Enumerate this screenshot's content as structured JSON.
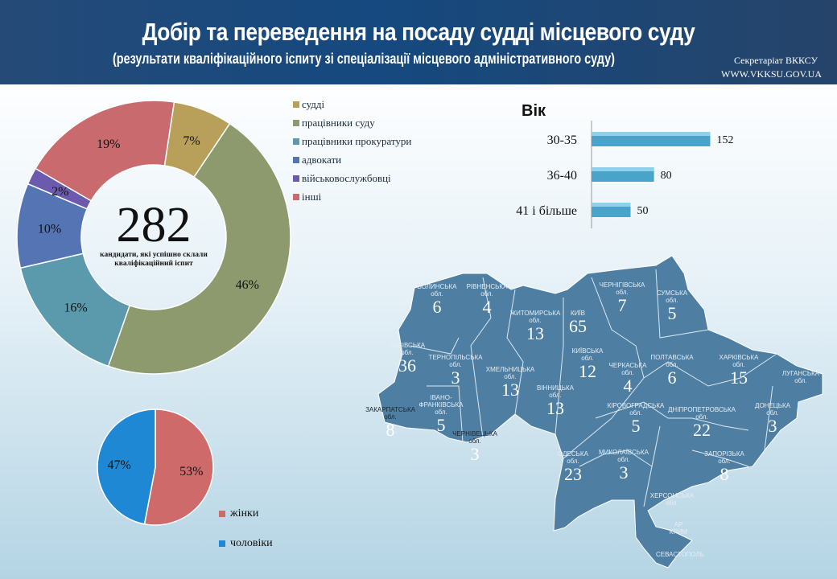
{
  "header": {
    "title": "Добір та переведення на посаду судді місцевого суду",
    "subtitle": "(результати кваліфікаційного іспиту зі спеціалізації місцевого адміністративного суду)",
    "secretariat": "Секретаріат ВККСУ",
    "url": "WWW.VKKSU.GOV.UA"
  },
  "chart_data": [
    {
      "type": "pie",
      "variant": "donut",
      "center_value": "282",
      "center_label": "кандидати, які успішно склали кваліфікаційний іспит",
      "categories": [
        "судді",
        "працівники суду",
        "працівники прокуратури",
        "адвокати",
        "військовослужбовці",
        "інші"
      ],
      "values": [
        7,
        46,
        16,
        10,
        2,
        19
      ],
      "labels": [
        "7%",
        "46%",
        "16%",
        "10%",
        "2%",
        "19%"
      ],
      "colors": [
        "#b9a05a",
        "#8c9a6e",
        "#5b9aad",
        "#5474b4",
        "#6b5aae",
        "#c86a6e"
      ],
      "legend": "right"
    },
    {
      "type": "pie",
      "categories": [
        "жінки",
        "чоловіки"
      ],
      "values": [
        53,
        47
      ],
      "labels": [
        "53%",
        "47%"
      ],
      "colors": [
        "#cf6a6b",
        "#1e88d4"
      ],
      "legend": "bottom-right"
    },
    {
      "type": "bar",
      "orientation": "horizontal",
      "title": "Вік",
      "categories": [
        "30-35",
        "36-40",
        "41 і більше"
      ],
      "values": [
        152,
        80,
        50
      ],
      "color": "#4aa3c8"
    }
  ],
  "map": {
    "regions": [
      {
        "name": "ВОЛИНСЬКА обл.",
        "value": "6"
      },
      {
        "name": "РІВНЕНСЬКА обл.",
        "value": "4"
      },
      {
        "name": "ЖИТОМИРСЬКА обл.",
        "value": "13"
      },
      {
        "name": "КИЇВ",
        "value": "65"
      },
      {
        "name": "ЧЕРНІГІВСЬКА обл.",
        "value": "7"
      },
      {
        "name": "СУМСЬКА обл.",
        "value": "5"
      },
      {
        "name": "ЛЬВІВСЬКА обл.",
        "value": "36"
      },
      {
        "name": "ТЕРНОПІЛЬСЬКА обл.",
        "value": "3"
      },
      {
        "name": "ХМЕЛЬНИЦЬКА обл.",
        "value": "13"
      },
      {
        "name": "КИЇВСЬКА обл.",
        "value": "12"
      },
      {
        "name": "ЧЕРКАСЬКА обл.",
        "value": "4"
      },
      {
        "name": "ПОЛТАВСЬКА обл.",
        "value": "6"
      },
      {
        "name": "ХАРКІВСЬКА обл.",
        "value": "15"
      },
      {
        "name": "ЛУГАНСЬКА обл.",
        "value": ""
      },
      {
        "name": "ВІННИЦЬКА обл.",
        "value": "13"
      },
      {
        "name": "ІВАНО-ФРАНКІВСЬКА обл.",
        "value": "5"
      },
      {
        "name": "ЗАКАРПАТСЬКА обл.",
        "value": "8"
      },
      {
        "name": "ЧЕРНІВЕЦЬКА обл.",
        "value": "3"
      },
      {
        "name": "КІРОВОГРАДСЬКА обл.",
        "value": "5"
      },
      {
        "name": "ДНІПРОПЕТРОВСЬКА обл.",
        "value": "22"
      },
      {
        "name": "ДОНЕЦЬКА обл.",
        "value": "3"
      },
      {
        "name": "ОДЕСЬКА обл.",
        "value": "23"
      },
      {
        "name": "МИКОЛАЇВСЬКА обл.",
        "value": "3"
      },
      {
        "name": "ЗАПОРІЗЬКА обл.",
        "value": "8"
      },
      {
        "name": "ХЕРСОНСЬКА обл.",
        "value": ""
      },
      {
        "name": "АР КРИМ",
        "value": ""
      },
      {
        "name": "СЕВАСТОПОЛЬ",
        "value": ""
      }
    ],
    "fill": "#4e7fa3"
  }
}
